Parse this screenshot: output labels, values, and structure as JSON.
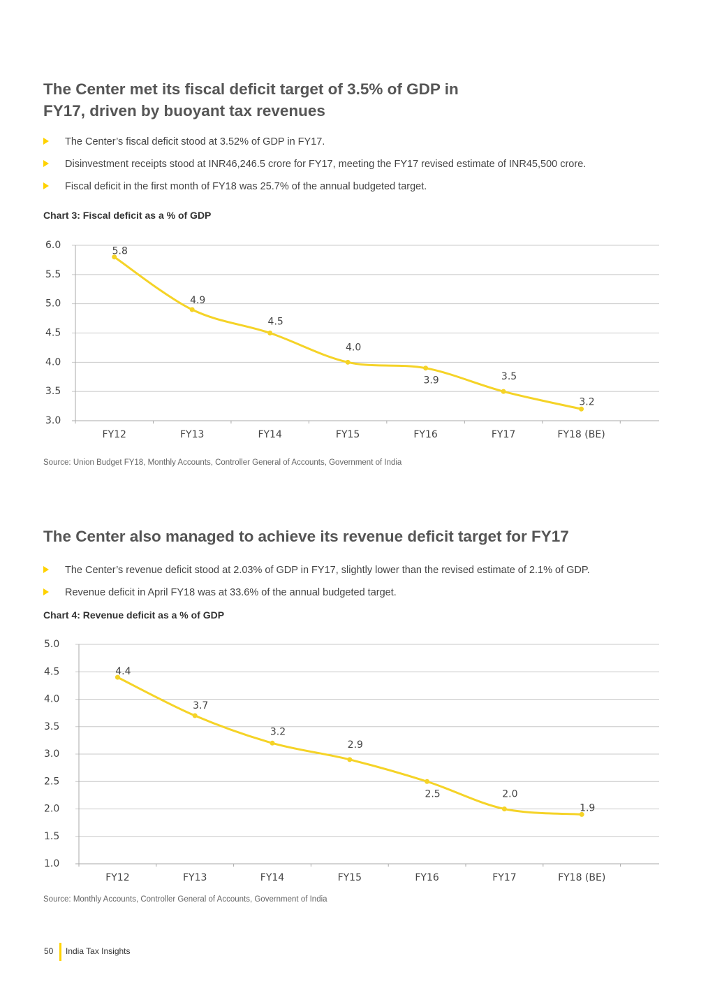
{
  "section1": {
    "heading_line1": "The Center met its fiscal deficit target of 3.5% of GDP in",
    "heading_line2": "FY17, driven by buoyant tax revenues",
    "bullets": [
      "The Center’s fiscal deficit stood at 3.52% of GDP in FY17.",
      "Disinvestment receipts stood at INR46,246.5 crore for FY17, meeting the FY17 revised estimate of INR45,500 crore.",
      "Fiscal deficit in the first month of FY18 was 25.7% of the annual budgeted target."
    ],
    "chart_title": "Chart 3: Fiscal deficit as a % of GDP",
    "source": "Source: Union Budget FY18, Monthly Accounts, Controller General of Accounts, Government of India"
  },
  "section2": {
    "heading": "The Center also managed to achieve its revenue deficit target for FY17",
    "bullets": [
      "The Center’s revenue deficit stood at 2.03% of GDP in FY17, slightly lower than the revised estimate of 2.1% of GDP.",
      "Revenue deficit in April FY18 was at 33.6% of the annual budgeted target."
    ],
    "chart_title": "Chart 4: Revenue deficit as a % of GDP",
    "source": "Source: Monthly Accounts, Controller General of Accounts, Government of India"
  },
  "footer": {
    "page_number": "50",
    "publication": "India Tax Insights"
  },
  "colors": {
    "accent": "#ffd200",
    "line": "#f5d327",
    "grid": "#c8c8c8"
  },
  "chart_data": [
    {
      "type": "line",
      "title": "Chart 3: Fiscal deficit as a % of GDP",
      "categories": [
        "FY12",
        "FY13",
        "FY14",
        "FY15",
        "FY16",
        "FY17",
        "FY18 (BE)"
      ],
      "values": [
        5.8,
        4.9,
        4.5,
        4.0,
        3.9,
        3.5,
        3.2
      ],
      "labels": [
        "5.8",
        "4.9",
        "4.5",
        "4.0",
        "3.9",
        "3.5",
        "3.2"
      ],
      "yticks": [
        "3.0",
        "3.5",
        "4.0",
        "4.5",
        "5.0",
        "5.5",
        "6.0"
      ],
      "ylim": [
        3.0,
        6.0
      ],
      "grid": true,
      "legend": "none"
    },
    {
      "type": "line",
      "title": "Chart 4: Revenue deficit as a % of GDP",
      "categories": [
        "FY12",
        "FY13",
        "FY14",
        "FY15",
        "FY16",
        "FY17",
        "FY18 (BE)"
      ],
      "values": [
        4.4,
        3.7,
        3.2,
        2.9,
        2.5,
        2.0,
        1.9
      ],
      "labels": [
        "4.4",
        "3.7",
        "3.2",
        "2.9",
        "2.5",
        "2.0",
        "1.9"
      ],
      "yticks": [
        "1.0",
        "1.5",
        "2.0",
        "2.5",
        "3.0",
        "3.5",
        "4.0",
        "4.5",
        "5.0"
      ],
      "ylim": [
        1.0,
        5.0
      ],
      "grid": true,
      "legend": "none"
    }
  ]
}
